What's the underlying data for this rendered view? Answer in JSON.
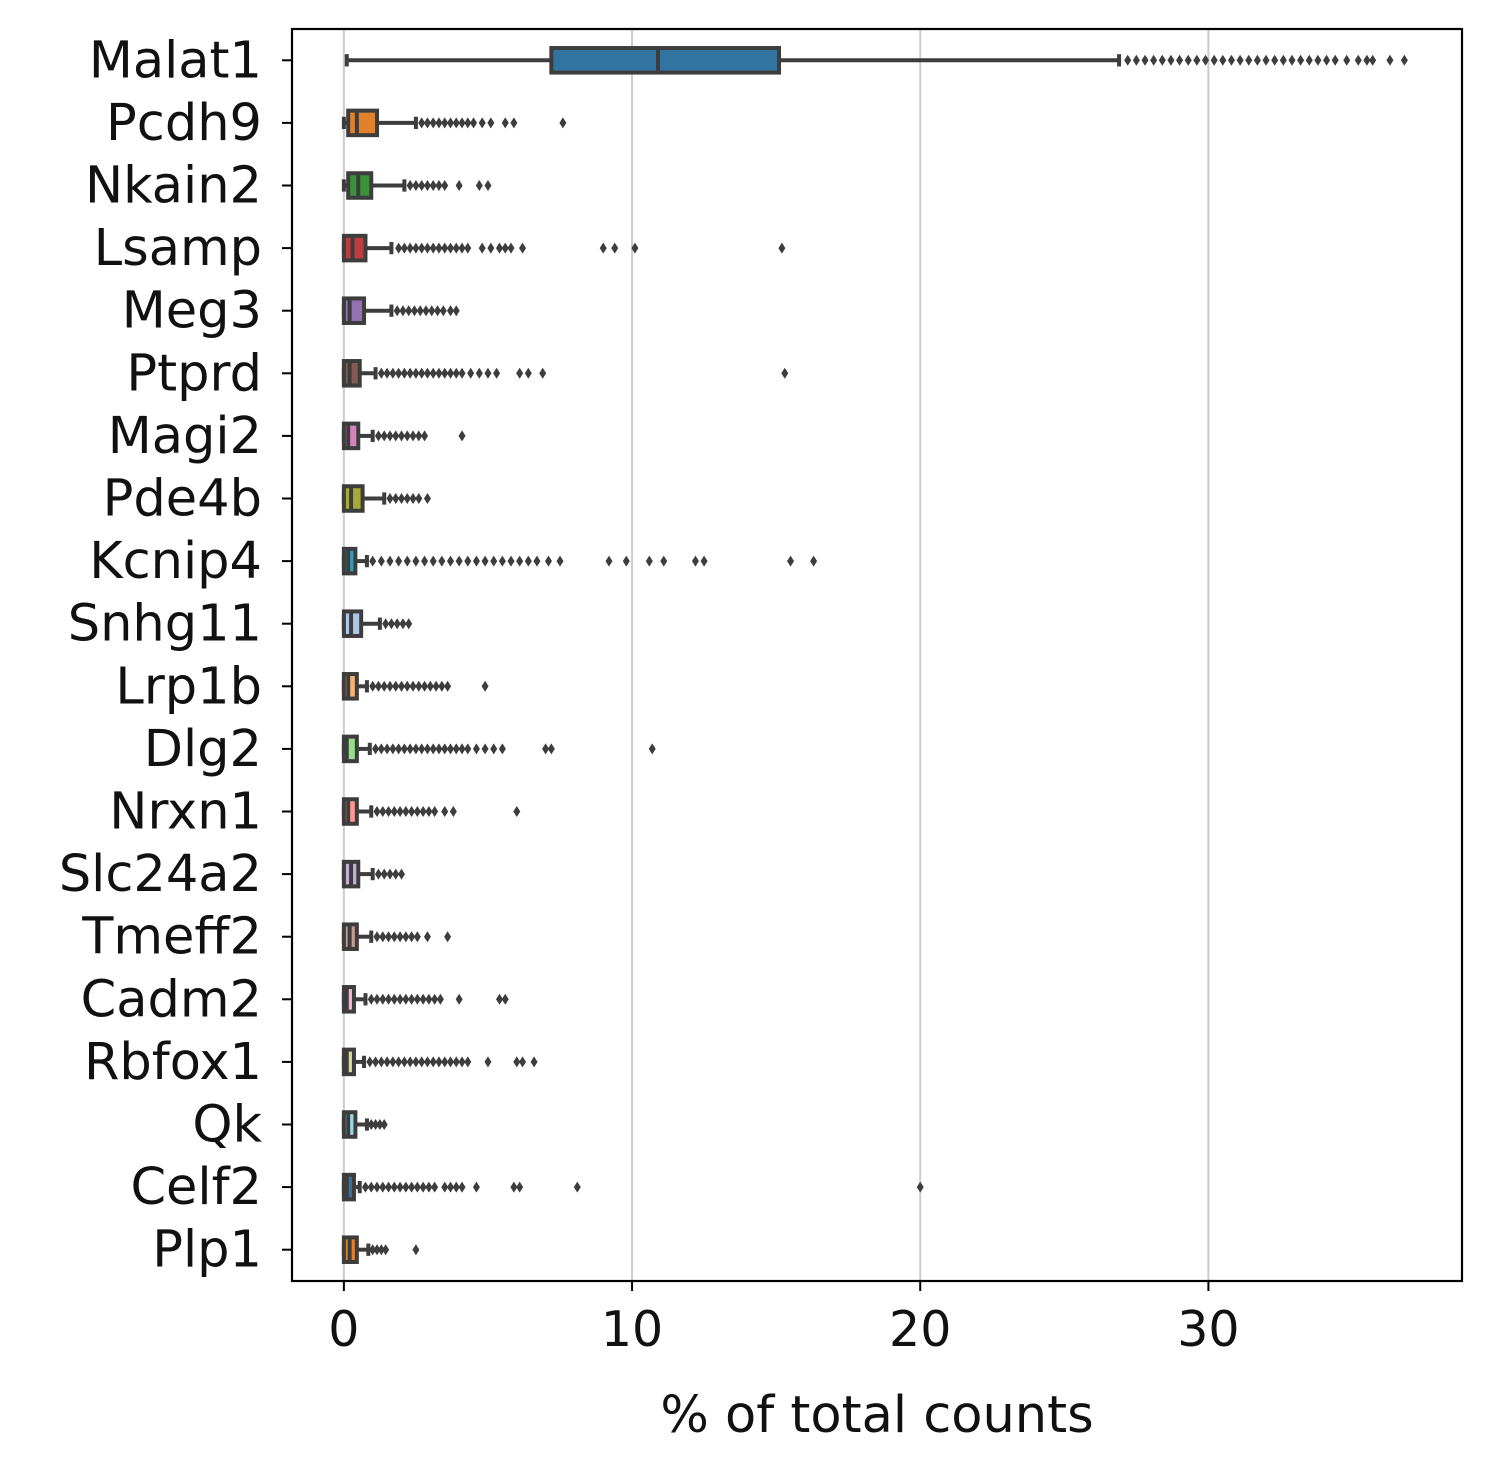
{
  "chart_data": {
    "type": "box",
    "orientation": "horizontal",
    "xlabel": "% of total counts",
    "ylabel": "",
    "xlim": [
      -1.8,
      38.8
    ],
    "xticks": [
      0,
      10,
      20,
      30
    ],
    "grid": "vertical",
    "categories": [
      "Malat1",
      "Pcdh9",
      "Nkain2",
      "Lsamp",
      "Meg3",
      "Ptprd",
      "Magi2",
      "Pde4b",
      "Kcnip4",
      "Snhg11",
      "Lrp1b",
      "Dlg2",
      "Nrxn1",
      "Slc24a2",
      "Tmeff2",
      "Cadm2",
      "Rbfox1",
      "Qk",
      "Celf2",
      "Plp1"
    ],
    "series": [
      {
        "label": "Malat1",
        "color": "#3274a1",
        "whisker_low": 0.1,
        "q1": 7.2,
        "median": 10.9,
        "q3": 15.1,
        "whisker_high": 26.9,
        "outliers": [
          27.2,
          27.5,
          27.8,
          28.1,
          28.4,
          28.7,
          29.0,
          29.3,
          29.6,
          29.9,
          30.2,
          30.5,
          30.8,
          31.1,
          31.4,
          31.7,
          32.0,
          32.3,
          32.6,
          32.9,
          33.2,
          33.5,
          33.8,
          34.1,
          34.4,
          34.8,
          35.2,
          35.5,
          35.7,
          36.3,
          36.8
        ]
      },
      {
        "label": "Pcdh9",
        "color": "#e1812c",
        "whisker_low": 0.0,
        "q1": 0.15,
        "median": 0.45,
        "q3": 1.15,
        "whisker_high": 2.5,
        "outliers": [
          2.7,
          2.9,
          3.1,
          3.3,
          3.5,
          3.7,
          3.9,
          4.1,
          4.3,
          4.5,
          4.8,
          5.1,
          5.6,
          5.9,
          7.6
        ]
      },
      {
        "label": "Nkain2",
        "color": "#3a923a",
        "whisker_low": 0.0,
        "q1": 0.15,
        "median": 0.5,
        "q3": 0.95,
        "whisker_high": 2.1,
        "outliers": [
          2.3,
          2.5,
          2.7,
          2.9,
          3.1,
          3.3,
          3.5,
          4.0,
          4.7,
          5.0
        ]
      },
      {
        "label": "Lsamp",
        "color": "#c03d3e",
        "whisker_low": 0.0,
        "q1": 0.0,
        "median": 0.3,
        "q3": 0.75,
        "whisker_high": 1.65,
        "outliers": [
          1.9,
          2.1,
          2.3,
          2.5,
          2.7,
          2.9,
          3.1,
          3.3,
          3.5,
          3.7,
          3.9,
          4.1,
          4.3,
          4.8,
          5.1,
          5.4,
          5.6,
          5.8,
          6.2,
          9.0,
          9.4,
          10.1,
          15.2
        ]
      },
      {
        "label": "Meg3",
        "color": "#9372b2",
        "whisker_low": 0.0,
        "q1": 0.0,
        "median": 0.2,
        "q3": 0.7,
        "whisker_high": 1.65,
        "outliers": [
          1.85,
          2.05,
          2.25,
          2.45,
          2.65,
          2.85,
          3.05,
          3.25,
          3.45,
          3.7,
          3.9
        ]
      },
      {
        "label": "Ptprd",
        "color": "#845b53",
        "whisker_low": 0.0,
        "q1": 0.0,
        "median": 0.2,
        "q3": 0.55,
        "whisker_high": 1.1,
        "outliers": [
          1.3,
          1.5,
          1.7,
          1.9,
          2.1,
          2.3,
          2.5,
          2.7,
          2.9,
          3.1,
          3.3,
          3.5,
          3.7,
          3.9,
          4.1,
          4.4,
          4.7,
          5.0,
          5.3,
          6.1,
          6.4,
          6.9,
          15.3
        ]
      },
      {
        "label": "Magi2",
        "color": "#d684bd",
        "whisker_low": 0.0,
        "q1": 0.0,
        "median": 0.15,
        "q3": 0.5,
        "whisker_high": 1.0,
        "outliers": [
          1.2,
          1.4,
          1.6,
          1.8,
          2.0,
          2.2,
          2.4,
          2.6,
          2.8,
          4.1
        ]
      },
      {
        "label": "Pde4b",
        "color": "#a9aa35",
        "whisker_low": 0.0,
        "q1": 0.0,
        "median": 0.25,
        "q3": 0.65,
        "whisker_high": 1.4,
        "outliers": [
          1.6,
          1.8,
          2.0,
          2.2,
          2.4,
          2.6,
          2.9
        ]
      },
      {
        "label": "Kcnip4",
        "color": "#2ea3b6",
        "whisker_low": 0.0,
        "q1": 0.0,
        "median": 0.15,
        "q3": 0.4,
        "whisker_high": 0.8,
        "outliers": [
          1.0,
          1.3,
          1.6,
          1.9,
          2.2,
          2.5,
          2.8,
          3.1,
          3.4,
          3.7,
          4.0,
          4.3,
          4.6,
          4.9,
          5.2,
          5.5,
          5.8,
          6.1,
          6.4,
          6.7,
          7.1,
          7.5,
          9.2,
          9.8,
          10.6,
          11.1,
          12.2,
          12.5,
          15.5,
          16.3
        ]
      },
      {
        "label": "Snhg11",
        "color": "#aec7e8",
        "whisker_low": 0.0,
        "q1": 0.0,
        "median": 0.25,
        "q3": 0.6,
        "whisker_high": 1.25,
        "outliers": [
          1.45,
          1.65,
          1.85,
          2.05,
          2.25
        ]
      },
      {
        "label": "Lrp1b",
        "color": "#f5b476",
        "whisker_low": 0.0,
        "q1": 0.0,
        "median": 0.15,
        "q3": 0.45,
        "whisker_high": 0.8,
        "outliers": [
          1.0,
          1.2,
          1.4,
          1.6,
          1.8,
          2.0,
          2.2,
          2.4,
          2.6,
          2.8,
          3.0,
          3.2,
          3.4,
          3.6,
          4.9
        ]
      },
      {
        "label": "Dlg2",
        "color": "#98df8a",
        "whisker_low": 0.0,
        "q1": 0.0,
        "median": 0.1,
        "q3": 0.45,
        "whisker_high": 0.9,
        "outliers": [
          1.1,
          1.3,
          1.5,
          1.7,
          1.9,
          2.1,
          2.3,
          2.5,
          2.7,
          2.9,
          3.1,
          3.3,
          3.5,
          3.7,
          3.9,
          4.1,
          4.3,
          4.6,
          4.9,
          5.2,
          5.5,
          7.0,
          7.2,
          10.7
        ]
      },
      {
        "label": "Nrxn1",
        "color": "#ff9896",
        "whisker_low": 0.0,
        "q1": 0.0,
        "median": 0.15,
        "q3": 0.45,
        "whisker_high": 0.95,
        "outliers": [
          1.15,
          1.35,
          1.55,
          1.75,
          1.95,
          2.15,
          2.35,
          2.55,
          2.75,
          2.95,
          3.15,
          3.5,
          3.8,
          6.0
        ]
      },
      {
        "label": "Slc24a2",
        "color": "#c5b0d5",
        "whisker_low": 0.0,
        "q1": 0.0,
        "median": 0.25,
        "q3": 0.5,
        "whisker_high": 1.0,
        "outliers": [
          1.2,
          1.4,
          1.6,
          1.8,
          2.0
        ]
      },
      {
        "label": "Tmeff2",
        "color": "#c49c94",
        "whisker_low": 0.0,
        "q1": 0.0,
        "median": 0.2,
        "q3": 0.45,
        "whisker_high": 0.95,
        "outliers": [
          1.15,
          1.35,
          1.55,
          1.75,
          1.95,
          2.15,
          2.35,
          2.55,
          2.9,
          3.6
        ]
      },
      {
        "label": "Cadm2",
        "color": "#f7b6d2",
        "whisker_low": 0.0,
        "q1": 0.0,
        "median": 0.1,
        "q3": 0.35,
        "whisker_high": 0.75,
        "outliers": [
          0.95,
          1.15,
          1.35,
          1.55,
          1.75,
          1.95,
          2.15,
          2.35,
          2.55,
          2.75,
          2.95,
          3.15,
          3.35,
          4.0,
          5.4,
          5.6
        ]
      },
      {
        "label": "Rbfox1",
        "color": "#dbdb8d",
        "whisker_low": 0.0,
        "q1": 0.0,
        "median": 0.1,
        "q3": 0.35,
        "whisker_high": 0.7,
        "outliers": [
          0.9,
          1.1,
          1.3,
          1.5,
          1.7,
          1.9,
          2.1,
          2.3,
          2.5,
          2.7,
          2.9,
          3.1,
          3.3,
          3.5,
          3.7,
          3.9,
          4.1,
          4.3,
          5.0,
          6.0,
          6.2,
          6.6
        ]
      },
      {
        "label": "Qk",
        "color": "#9edae5",
        "whisker_low": 0.0,
        "q1": 0.0,
        "median": 0.15,
        "q3": 0.4,
        "whisker_high": 0.8,
        "outliers": [
          0.95,
          1.1,
          1.25,
          1.4
        ]
      },
      {
        "label": "Celf2",
        "color": "#3274a1",
        "whisker_low": 0.0,
        "q1": 0.0,
        "median": 0.1,
        "q3": 0.35,
        "whisker_high": 0.55,
        "outliers": [
          0.75,
          0.95,
          1.15,
          1.35,
          1.55,
          1.75,
          1.95,
          2.15,
          2.35,
          2.55,
          2.75,
          2.95,
          3.15,
          3.5,
          3.7,
          3.9,
          4.1,
          4.6,
          5.9,
          6.1,
          8.1,
          20.0
        ]
      },
      {
        "label": "Plp1",
        "color": "#e1812c",
        "whisker_low": 0.0,
        "q1": 0.0,
        "median": 0.2,
        "q3": 0.45,
        "whisker_high": 0.85,
        "outliers": [
          1.0,
          1.15,
          1.3,
          1.45,
          2.5
        ]
      }
    ]
  }
}
